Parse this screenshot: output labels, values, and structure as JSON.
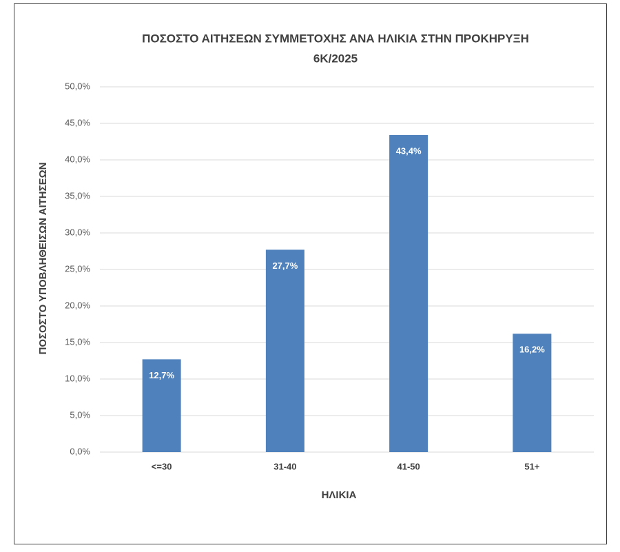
{
  "chart_data": {
    "type": "bar",
    "title": [
      "ΠΟΣΟΣΤΟ ΑΙΤΗΣΕΩΝ ΣΥΜΜΕΤΟΧΗΣ ΑΝΑ ΗΛΙΚΙΑ ΣΤΗΝ ΠΡΟΚΗΡΥΞΗ",
      "6Κ/2025"
    ],
    "x_label": "ΗΛΙΚΙΑ",
    "y_label": "ΠΟΣΟΣΤΟ ΥΠΟΒΛΗΘΕΙΣΩΝ ΑΙΤΗΣΕΩΝ",
    "categories": [
      "<=30",
      "31-40",
      "41-50",
      "51+"
    ],
    "values": [
      12.7,
      27.7,
      43.4,
      16.2
    ],
    "value_labels": [
      "12,7%",
      "27,7%",
      "43,4%",
      "16,2%"
    ],
    "color": "#4f81bd",
    "ylim": [
      0,
      50
    ],
    "yticks": [
      {
        "value": 0,
        "label": "0,0%"
      },
      {
        "value": 5,
        "label": "5,0%"
      },
      {
        "value": 10,
        "label": "10,0%"
      },
      {
        "value": 15,
        "label": "15,0%"
      },
      {
        "value": 20,
        "label": "20,0%"
      },
      {
        "value": 25,
        "label": "25,0%"
      },
      {
        "value": 30,
        "label": "30,0%"
      },
      {
        "value": 35,
        "label": "35,0%"
      },
      {
        "value": 40,
        "label": "40,0%"
      },
      {
        "value": 45,
        "label": "45,0%"
      },
      {
        "value": 50,
        "label": "50,0%"
      }
    ],
    "grid": true
  }
}
